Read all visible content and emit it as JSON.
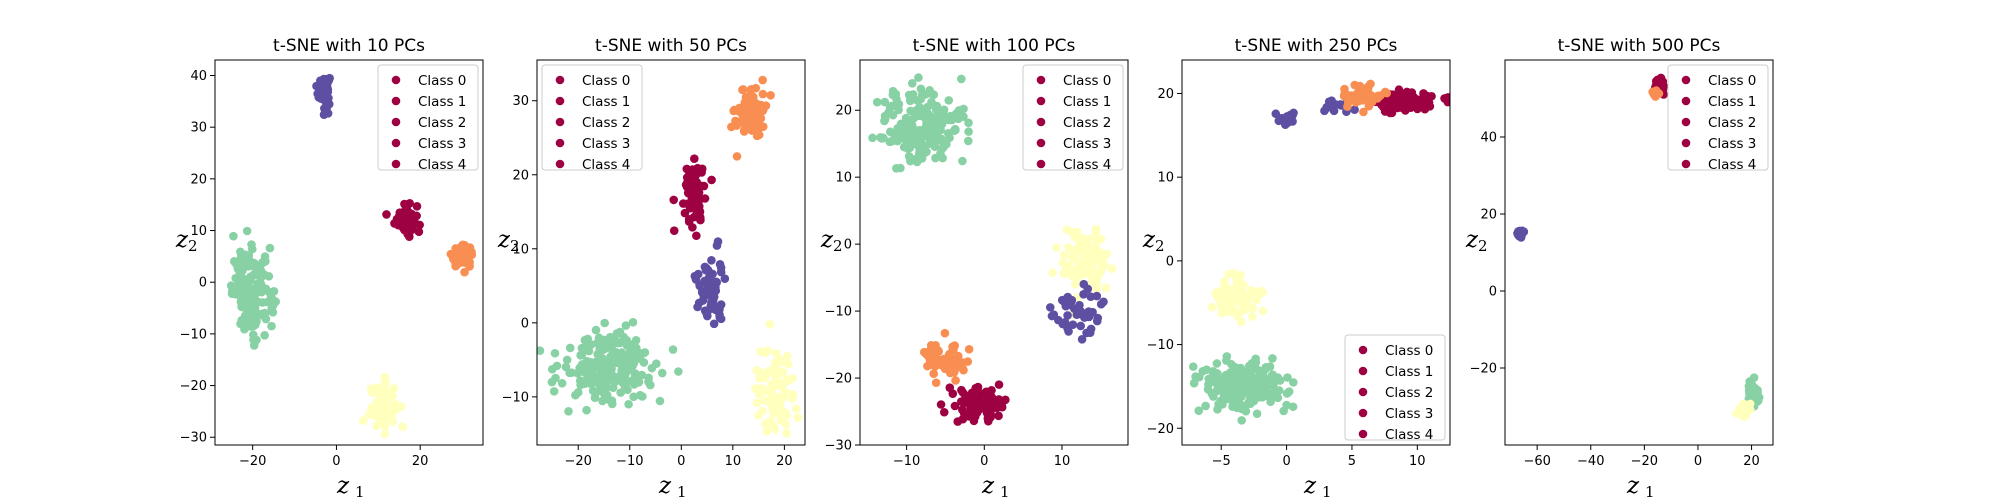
{
  "colors": {
    "class0": "#9e0142",
    "class1": "#9e0142",
    "class2": "#9e0142",
    "class3": "#9e0142",
    "class4": "#9e0142",
    "cluster_red": "#9e0142",
    "cluster_orange": "#f98e52",
    "cluster_yellow": "#ffffbe",
    "cluster_green": "#88d1a4",
    "cluster_purple": "#5e4fa2"
  },
  "chart_data": [
    {
      "type": "scatter",
      "title": "t-SNE with 10 PCs",
      "xlabel": "z",
      "xlabel_sub": "1",
      "ylabel": "z",
      "ylabel_sub": "2",
      "xlim": [
        -29,
        35
      ],
      "ylim": [
        -31.5,
        43
      ],
      "xticks": [
        -20,
        0,
        20
      ],
      "yticks": [
        -30,
        -20,
        -10,
        0,
        10,
        20,
        30,
        40
      ],
      "legend": {
        "position": "upper right",
        "entries": [
          "Class 0",
          "Class 1",
          "Class 2",
          "Class 3",
          "Class 4"
        ]
      },
      "clusters": [
        {
          "color": "cluster_purple",
          "cx": -3,
          "cy": 37,
          "sx": 0.7,
          "sy": 1.6,
          "n": 60
        },
        {
          "color": "cluster_red",
          "cx": 16.5,
          "cy": 12.5,
          "sx": 1.3,
          "sy": 1.7,
          "n": 50
        },
        {
          "color": "cluster_orange",
          "cx": 30,
          "cy": 5,
          "sx": 1.3,
          "sy": 1.0,
          "n": 50
        },
        {
          "color": "cluster_green",
          "cx": -20,
          "cy": -2,
          "sx": 2.4,
          "sy": 4.0,
          "n": 160
        },
        {
          "color": "cluster_yellow",
          "cx": 11,
          "cy": -24,
          "sx": 1.6,
          "sy": 2.2,
          "n": 70
        }
      ]
    },
    {
      "type": "scatter",
      "title": "t-SNE with 50 PCs",
      "xlabel": "z",
      "xlabel_sub": "1",
      "ylabel": "z",
      "ylabel_sub": "2",
      "xlim": [
        -28,
        24
      ],
      "ylim": [
        -16.5,
        35.5
      ],
      "xticks": [
        -20,
        -10,
        0,
        10,
        20
      ],
      "yticks": [
        -10,
        0,
        10,
        20,
        30
      ],
      "legend": {
        "position": "upper left",
        "entries": [
          "Class 0",
          "Class 1",
          "Class 2",
          "Class 3",
          "Class 4"
        ]
      },
      "clusters": [
        {
          "color": "cluster_orange",
          "cx": 13.5,
          "cy": 28.5,
          "sx": 1.5,
          "sy": 2.0,
          "n": 70
        },
        {
          "color": "cluster_red",
          "cx": 2.5,
          "cy": 17.5,
          "sx": 1.2,
          "sy": 2.2,
          "n": 70
        },
        {
          "color": "cluster_purple",
          "cx": 5.5,
          "cy": 4.5,
          "sx": 1.3,
          "sy": 2.4,
          "n": 60
        },
        {
          "color": "cluster_green",
          "cx": -14,
          "cy": -6,
          "sx": 5.0,
          "sy": 2.4,
          "n": 200
        },
        {
          "color": "cluster_yellow",
          "cx": 18,
          "cy": -9,
          "sx": 1.8,
          "sy": 2.8,
          "n": 90
        }
      ]
    },
    {
      "type": "scatter",
      "title": "t-SNE with 100 PCs",
      "xlabel": "z",
      "xlabel_sub": "1",
      "ylabel": "z",
      "ylabel_sub": "2",
      "xlim": [
        -16,
        18.5
      ],
      "ylim": [
        -30,
        27.5
      ],
      "xticks": [
        -10,
        0,
        10
      ],
      "yticks": [
        -30,
        -20,
        -10,
        0,
        10,
        20
      ],
      "legend": {
        "position": "upper right",
        "entries": [
          "Class 0",
          "Class 1",
          "Class 2",
          "Class 3",
          "Class 4"
        ]
      },
      "clusters": [
        {
          "color": "cluster_green",
          "cx": -8,
          "cy": 17.5,
          "sx": 2.7,
          "sy": 2.8,
          "n": 200
        },
        {
          "color": "cluster_yellow",
          "cx": 13,
          "cy": -2.5,
          "sx": 1.6,
          "sy": 2.4,
          "n": 90
        },
        {
          "color": "cluster_purple",
          "cx": 12,
          "cy": -10,
          "sx": 1.5,
          "sy": 2.0,
          "n": 50
        },
        {
          "color": "cluster_orange",
          "cx": -5,
          "cy": -17.5,
          "sx": 1.4,
          "sy": 1.3,
          "n": 70
        },
        {
          "color": "cluster_red",
          "cx": -1,
          "cy": -24,
          "sx": 1.6,
          "sy": 1.3,
          "n": 90
        }
      ]
    },
    {
      "type": "scatter",
      "title": "t-SNE with 250 PCs",
      "xlabel": "z",
      "xlabel_sub": "1",
      "ylabel": "z",
      "ylabel_sub": "2",
      "xlim": [
        -8,
        12.5
      ],
      "ylim": [
        -22,
        24
      ],
      "xticks": [
        -5,
        0,
        5,
        10
      ],
      "yticks": [
        -20,
        -10,
        0,
        10,
        20
      ],
      "legend": {
        "position": "lower right",
        "entries": [
          "Class 0",
          "Class 1",
          "Class 2",
          "Class 3",
          "Class 4"
        ]
      },
      "clusters": [
        {
          "color": "cluster_purple",
          "cx": 0,
          "cy": 17,
          "sx": 0.5,
          "sy": 0.4,
          "n": 15
        },
        {
          "color": "cluster_purple",
          "cx": 3.5,
          "cy": 18.5,
          "sx": 0.9,
          "sy": 0.4,
          "n": 15
        },
        {
          "color": "cluster_red",
          "cx": 9,
          "cy": 19,
          "sx": 1.3,
          "sy": 0.7,
          "n": 90
        },
        {
          "color": "cluster_orange",
          "cx": 5.8,
          "cy": 19.8,
          "sx": 0.7,
          "sy": 0.6,
          "n": 50
        },
        {
          "color": "cluster_yellow",
          "cx": -4,
          "cy": -4.5,
          "sx": 0.9,
          "sy": 1.2,
          "n": 80
        },
        {
          "color": "cluster_green",
          "cx": -3.2,
          "cy": -15,
          "sx": 1.6,
          "sy": 1.5,
          "n": 200
        }
      ]
    },
    {
      "type": "scatter",
      "title": "t-SNE with 500 PCs",
      "xlabel": "z",
      "xlabel_sub": "1",
      "ylabel": "z",
      "ylabel_sub": "2",
      "xlim": [
        -72,
        28
      ],
      "ylim": [
        -40,
        60
      ],
      "xticks": [
        -60,
        -40,
        -20,
        0,
        20
      ],
      "yticks": [
        -20,
        0,
        20,
        40
      ],
      "legend": {
        "position": "upper right",
        "entries": [
          "Class 0",
          "Class 1",
          "Class 2",
          "Class 3",
          "Class 4"
        ]
      },
      "clusters": [
        {
          "color": "cluster_purple",
          "cx": -66,
          "cy": 15,
          "sx": 0.6,
          "sy": 0.6,
          "n": 20
        },
        {
          "color": "cluster_red",
          "cx": -14.5,
          "cy": 53,
          "sx": 0.7,
          "sy": 0.9,
          "n": 50
        },
        {
          "color": "cluster_orange",
          "cx": -16,
          "cy": 51.5,
          "sx": 0.5,
          "sy": 0.5,
          "n": 15
        },
        {
          "color": "cluster_green",
          "cx": 20.5,
          "cy": -27,
          "sx": 0.9,
          "sy": 1.4,
          "n": 100
        },
        {
          "color": "cluster_yellow",
          "cx": 17,
          "cy": -31,
          "sx": 0.9,
          "sy": 0.9,
          "n": 40
        }
      ]
    }
  ]
}
